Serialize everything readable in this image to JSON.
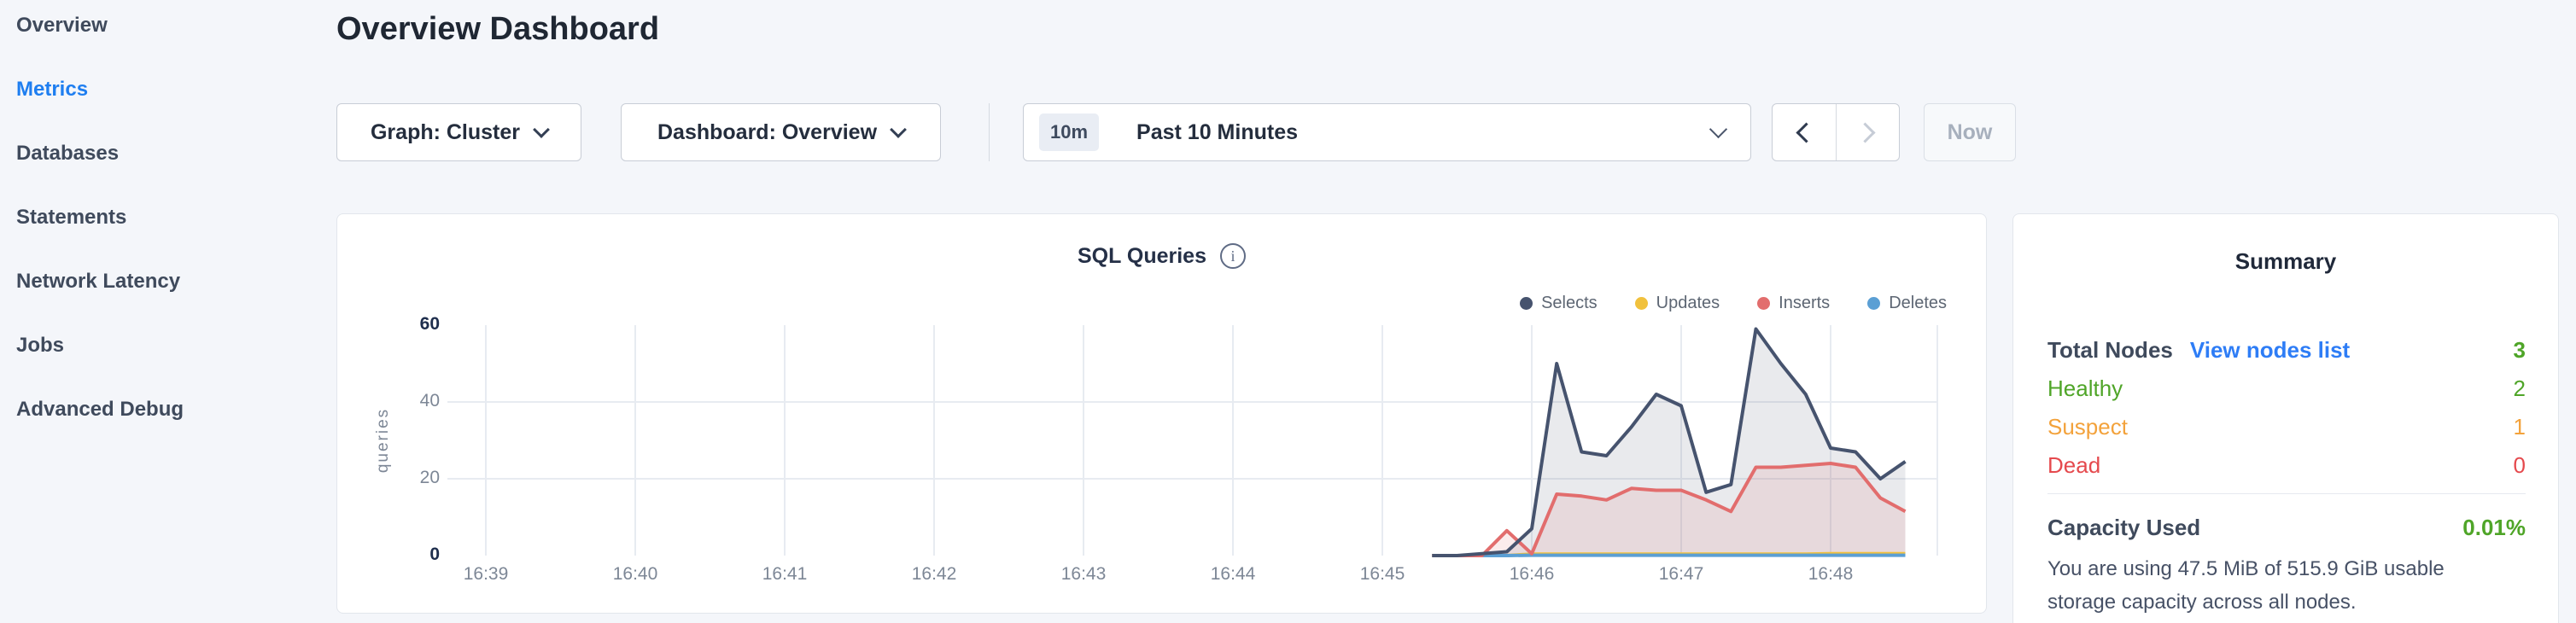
{
  "sidebar": {
    "items": [
      {
        "label": "Overview",
        "active": false
      },
      {
        "label": "Metrics",
        "active": true
      },
      {
        "label": "Databases",
        "active": false
      },
      {
        "label": "Statements",
        "active": false
      },
      {
        "label": "Network Latency",
        "active": false
      },
      {
        "label": "Jobs",
        "active": false
      },
      {
        "label": "Advanced Debug",
        "active": false
      }
    ]
  },
  "header": {
    "title": "Overview Dashboard"
  },
  "controls": {
    "graph_dropdown_label": "Graph: Cluster",
    "dashboard_dropdown_label": "Dashboard: Overview",
    "time_window_badge": "10m",
    "time_window_label": "Past 10 Minutes",
    "now_button_label": "Now"
  },
  "colors": {
    "accent_blue": "#1e7ef0",
    "link_blue": "#2e7df6",
    "green": "#4fa528",
    "orange": "#f3a23b",
    "red": "#e5494d",
    "slate": "#3f4a5c"
  },
  "chart_data": {
    "type": "area",
    "title": "SQL Queries",
    "info_icon": "i",
    "ylabel": "queries",
    "ylim": [
      0,
      60
    ],
    "y_ticks": [
      0,
      20,
      40,
      60
    ],
    "x_ticks": [
      "16:39",
      "16:40",
      "16:41",
      "16:42",
      "16:43",
      "16:44",
      "16:45",
      "16:46",
      "16:47",
      "16:48"
    ],
    "grid": true,
    "legend_position": "top-right",
    "x": [
      "16:45:20",
      "16:45:30",
      "16:45:40",
      "16:45:50",
      "16:46:00",
      "16:46:10",
      "16:46:20",
      "16:46:30",
      "16:46:40",
      "16:46:50",
      "16:47:00",
      "16:47:10",
      "16:47:20",
      "16:47:30",
      "16:47:40",
      "16:47:50",
      "16:48:00",
      "16:48:10",
      "16:48:20",
      "16:48:30"
    ],
    "series": [
      {
        "name": "Selects",
        "color": "#46536e",
        "fill": "rgba(70,83,110,0.12)",
        "values": [
          0,
          0,
          0.5,
          1,
          7,
          50,
          27,
          26,
          33.5,
          42,
          39,
          16.5,
          18.5,
          59,
          50,
          42,
          28,
          27,
          20,
          24.5
        ]
      },
      {
        "name": "Updates",
        "color": "#f1c13d",
        "fill": "none",
        "values": [
          0,
          0,
          0,
          0,
          0.4,
          0.4,
          0.4,
          0.4,
          0.4,
          0.4,
          0.4,
          0.4,
          0.4,
          0.4,
          0.4,
          0.4,
          0.5,
          0.5,
          0.5,
          0.5
        ]
      },
      {
        "name": "Inserts",
        "color": "#e26d6d",
        "fill": "rgba(226,109,109,0.13)",
        "values": [
          0,
          0,
          0,
          6.5,
          0.5,
          16,
          15.5,
          14.5,
          17.5,
          17,
          17,
          14.5,
          11.5,
          23,
          23,
          23.5,
          24,
          23,
          15,
          11.5
        ]
      },
      {
        "name": "Deletes",
        "color": "#5b9fd4",
        "fill": "none",
        "values": [
          0,
          0,
          0,
          0,
          0.1,
          0.1,
          0.1,
          0.1,
          0.1,
          0.1,
          0.1,
          0.1,
          0.1,
          0.1,
          0.1,
          0.1,
          0.1,
          0.1,
          0.1,
          0.1
        ]
      }
    ]
  },
  "summary": {
    "title": "Summary",
    "rows": [
      {
        "label": "Total Nodes",
        "link": "View nodes list",
        "value": "3",
        "label_color": "#3f4a5c",
        "value_color": "#4fa528",
        "bold": true
      },
      {
        "label": "Healthy",
        "value": "2",
        "label_color": "#4fa528",
        "value_color": "#4fa528",
        "bold": false
      },
      {
        "label": "Suspect",
        "value": "1",
        "label_color": "#f3a23b",
        "value_color": "#f3a23b",
        "bold": false
      },
      {
        "label": "Dead",
        "value": "0",
        "label_color": "#e5494d",
        "value_color": "#e5494d",
        "bold": false
      }
    ],
    "capacity": {
      "label": "Capacity Used",
      "value": "0.01%",
      "value_color": "#4fa528",
      "description": "You are using 47.5 MiB of 515.9 GiB usable storage capacity across all nodes."
    }
  }
}
